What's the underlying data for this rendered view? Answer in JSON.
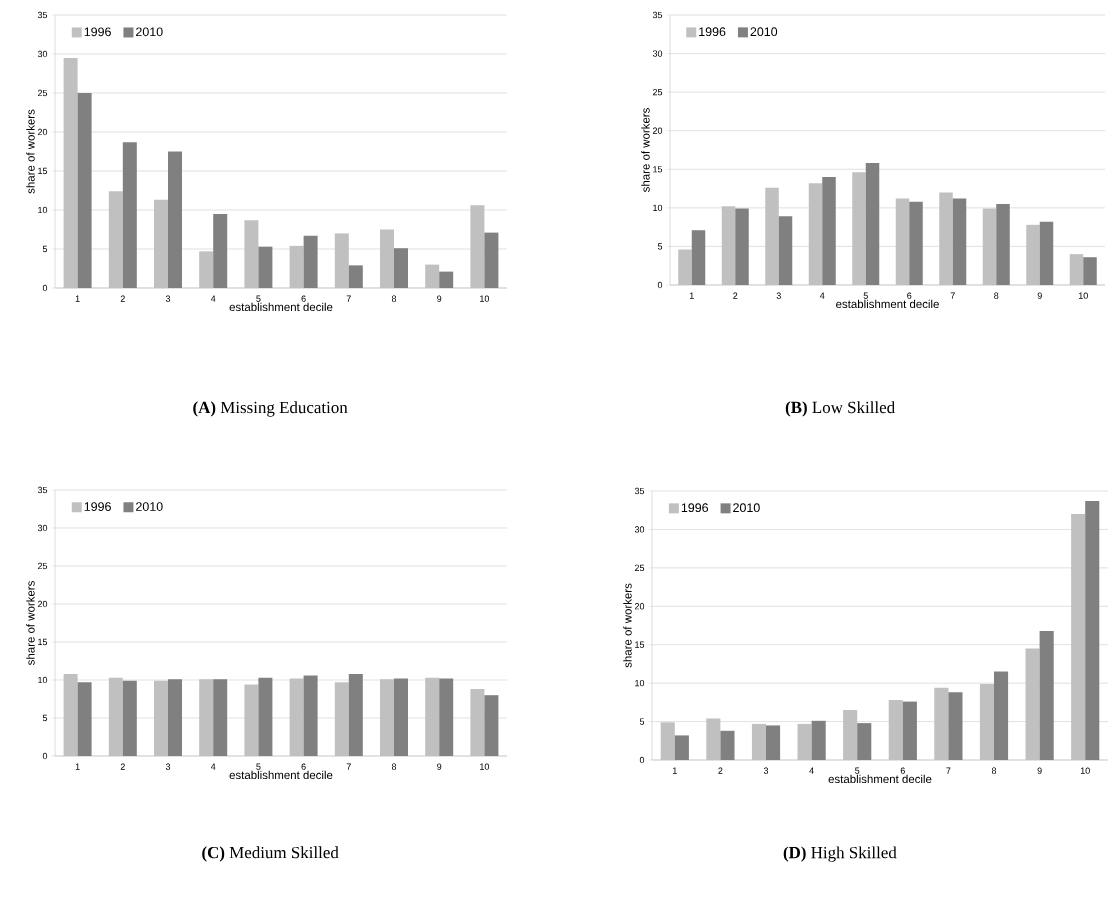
{
  "chart_data": [
    {
      "type": "bar",
      "title": "**(A)** Missing Education",
      "xlabel": "establishment decile",
      "ylabel": "share of workers",
      "categories": [
        "1",
        "2",
        "3",
        "4",
        "5",
        "6",
        "7",
        "8",
        "9",
        "10"
      ],
      "series": [
        {
          "name": "1996",
          "color": "#c0c0c0",
          "values": [
            29.5,
            12.4,
            11.3,
            4.7,
            8.7,
            5.4,
            7.0,
            7.5,
            3.0,
            10.6
          ]
        },
        {
          "name": "2010",
          "color": "#808080",
          "values": [
            25.0,
            18.7,
            17.5,
            9.5,
            5.3,
            6.7,
            2.9,
            5.1,
            2.1,
            7.1
          ]
        }
      ],
      "ylim": [
        0,
        35
      ],
      "yticks": [
        0,
        5,
        10,
        15,
        20,
        25,
        30,
        35
      ],
      "grid": "y",
      "legend": "top left"
    },
    {
      "type": "bar",
      "title": "**(B)** Low Skilled",
      "xlabel": "establishment decile",
      "ylabel": "share of workers",
      "categories": [
        "1",
        "2",
        "3",
        "4",
        "5",
        "6",
        "7",
        "8",
        "9",
        "10"
      ],
      "series": [
        {
          "name": "1996",
          "color": "#c0c0c0",
          "values": [
            4.6,
            10.2,
            12.6,
            13.2,
            14.6,
            11.2,
            12.0,
            9.9,
            7.8,
            4.0
          ]
        },
        {
          "name": "2010",
          "color": "#808080",
          "values": [
            7.1,
            9.9,
            8.9,
            14.0,
            15.8,
            10.8,
            11.2,
            10.5,
            8.2,
            3.6
          ]
        }
      ],
      "ylim": [
        0,
        35
      ],
      "yticks": [
        0,
        5,
        10,
        15,
        20,
        25,
        30,
        35
      ],
      "grid": "y",
      "legend": "top left"
    },
    {
      "type": "bar",
      "title": "**(C)** Medium Skilled",
      "xlabel": "establishment decile",
      "ylabel": "share of workers",
      "categories": [
        "1",
        "2",
        "3",
        "4",
        "5",
        "6",
        "7",
        "8",
        "9",
        "10"
      ],
      "series": [
        {
          "name": "1996",
          "color": "#c0c0c0",
          "values": [
            10.8,
            10.3,
            9.9,
            10.1,
            9.4,
            10.2,
            9.7,
            10.1,
            10.3,
            8.8
          ]
        },
        {
          "name": "2010",
          "color": "#808080",
          "values": [
            9.7,
            9.9,
            10.1,
            10.1,
            10.3,
            10.6,
            10.8,
            10.2,
            10.2,
            8.0
          ]
        }
      ],
      "ylim": [
        0,
        35
      ],
      "yticks": [
        0,
        5,
        10,
        15,
        20,
        25,
        30,
        35
      ],
      "grid": "y",
      "legend": "top left"
    },
    {
      "type": "bar",
      "title": "**(D)** High Skilled",
      "xlabel": "establishment decile",
      "ylabel": "share of workers",
      "categories": [
        "1",
        "2",
        "3",
        "4",
        "5",
        "6",
        "7",
        "8",
        "9",
        "10"
      ],
      "series": [
        {
          "name": "1996",
          "color": "#c0c0c0",
          "values": [
            4.9,
            5.4,
            4.7,
            4.7,
            6.5,
            7.8,
            9.4,
            9.9,
            14.5,
            32.0
          ]
        },
        {
          "name": "2010",
          "color": "#808080",
          "values": [
            3.2,
            3.8,
            4.5,
            5.1,
            4.8,
            7.6,
            8.8,
            11.5,
            16.8,
            33.7
          ]
        }
      ],
      "ylim": [
        0,
        35
      ],
      "yticks": [
        0,
        5,
        10,
        15,
        20,
        25,
        30,
        35
      ],
      "grid": "y",
      "legend": "top left"
    }
  ]
}
